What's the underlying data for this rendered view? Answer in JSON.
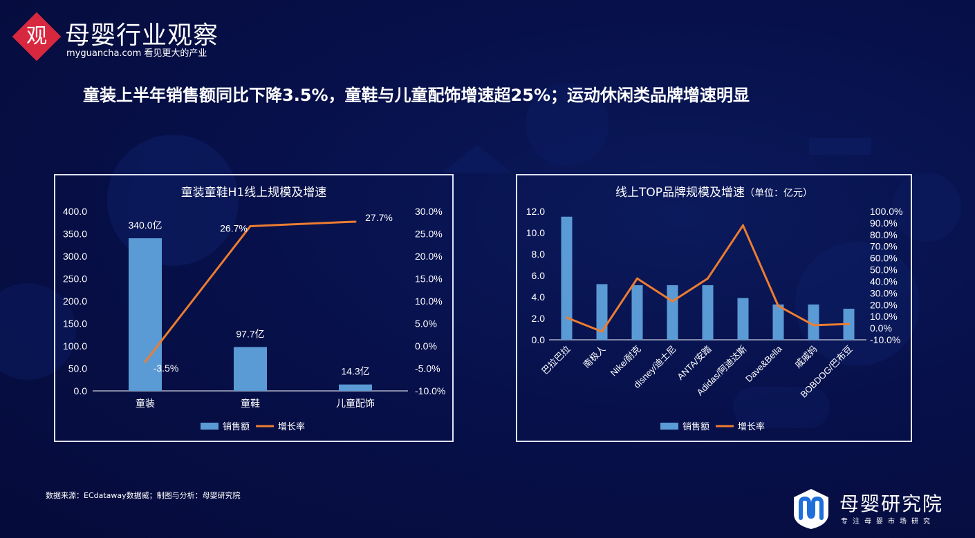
{
  "header": {
    "logo_char": "观",
    "logo_title": "母婴行业观察",
    "logo_sub": "myguancha.com 看见更大的产业",
    "headline": "童装上半年销售额同比下降3.5%，童鞋与儿童配饰增速超25%；运动休闲类品牌增速明显"
  },
  "footer": {
    "source": "数据来源：ECdataway数据威；制图与分析：母婴研究院",
    "brand_name": "母婴研究院",
    "brand_tag": "专注母婴市场研究"
  },
  "colors": {
    "bar": "#5b9bd5",
    "line": "#ed7d31",
    "background": "#07104a",
    "brand_red": "#d8283f"
  },
  "chart_data": [
    {
      "type": "bar",
      "title": "童装童鞋H1线上规模及增速",
      "categories": [
        "童装",
        "童鞋",
        "儿童配饰"
      ],
      "series": [
        {
          "name": "销售额",
          "type": "bar",
          "axis": "left",
          "values": [
            340.0,
            97.7,
            14.3
          ],
          "labels": [
            "340.0亿",
            "97.7亿",
            "14.3亿"
          ]
        },
        {
          "name": "增长率",
          "type": "line",
          "axis": "right",
          "values": [
            -3.5,
            26.7,
            27.7
          ],
          "labels": [
            "-3.5%",
            "26.7%",
            "27.7%"
          ]
        }
      ],
      "y_left": {
        "min": 0,
        "max": 400,
        "step": 50,
        "ticks": [
          "0.0",
          "50.0",
          "100.0",
          "150.0",
          "200.0",
          "250.0",
          "300.0",
          "350.0",
          "400.0"
        ]
      },
      "y_right": {
        "min": -10,
        "max": 30,
        "step": 5,
        "ticks": [
          "-10.0%",
          "-5.0%",
          "0.0%",
          "5.0%",
          "10.0%",
          "15.0%",
          "20.0%",
          "25.0%",
          "30.0%"
        ]
      },
      "legend": [
        "销售额",
        "增长率"
      ],
      "legend_position": "bottom",
      "grid": false
    },
    {
      "type": "bar",
      "title": "线上TOP品牌规模及增速",
      "title_unit": "（单位：亿元）",
      "categories": [
        "巴拉巴拉",
        "南极人",
        "Nike/耐克",
        "disney/迪士尼",
        "ANTA/安踏",
        "Adidas/阿迪达斯",
        "Dave&Bella",
        "戚戚妈",
        "BOBDOG/巴布豆"
      ],
      "series": [
        {
          "name": "销售额",
          "type": "bar",
          "axis": "left",
          "values": [
            11.5,
            5.2,
            5.1,
            5.1,
            5.1,
            3.9,
            3.3,
            3.3,
            2.9
          ]
        },
        {
          "name": "增长率",
          "type": "line",
          "axis": "right",
          "values": [
            9.0,
            -3.0,
            42.5,
            23.0,
            42.5,
            88.0,
            19.0,
            2.5,
            3.5
          ]
        }
      ],
      "y_left": {
        "min": 0,
        "max": 12,
        "step": 2,
        "ticks": [
          "0.0",
          "2.0",
          "4.0",
          "6.0",
          "8.0",
          "10.0",
          "12.0"
        ]
      },
      "y_right": {
        "min": -10,
        "max": 100,
        "step": 10,
        "ticks": [
          "-10.0%",
          "0.0%",
          "10.0%",
          "20.0%",
          "30.0%",
          "40.0%",
          "50.0%",
          "60.0%",
          "70.0%",
          "80.0%",
          "90.0%",
          "100.0%"
        ]
      },
      "legend": [
        "销售额",
        "增长率"
      ],
      "legend_position": "bottom",
      "grid": false
    }
  ]
}
